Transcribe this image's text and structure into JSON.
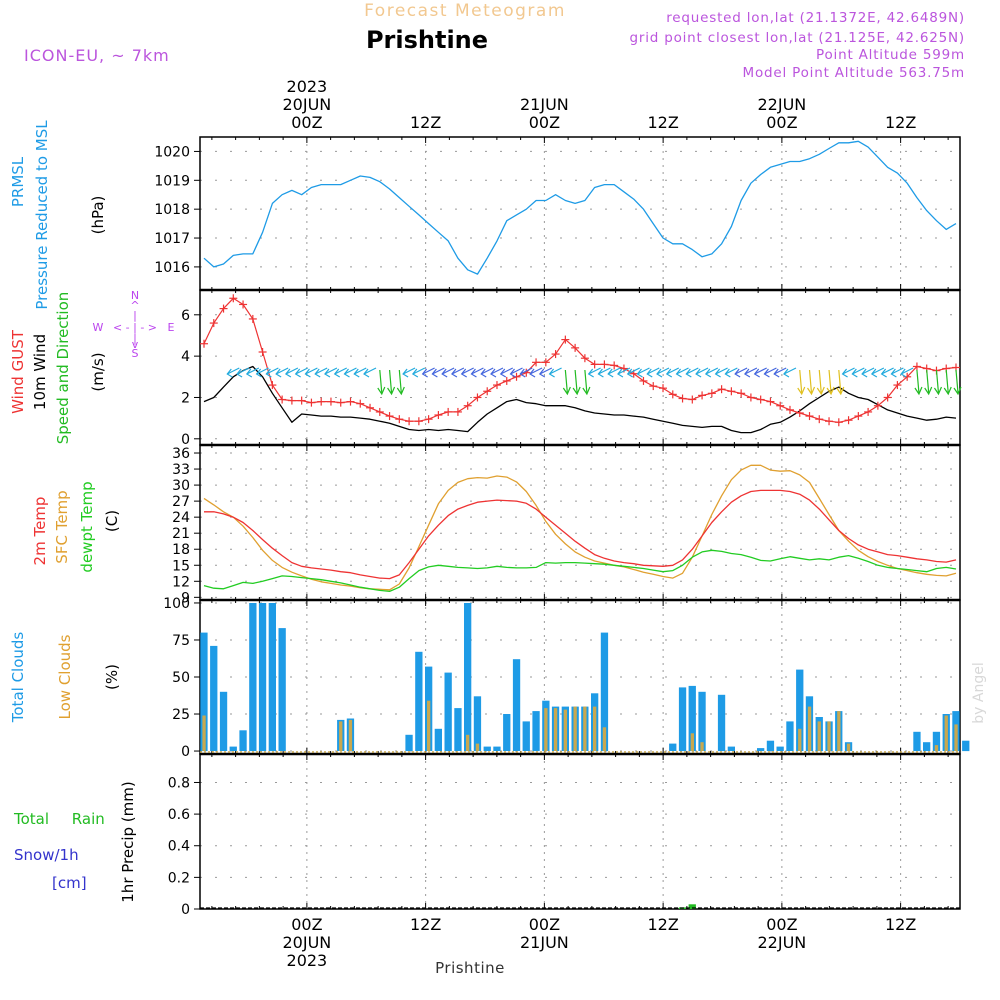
{
  "header": {
    "product": "Forecast Meteogram",
    "location": "Prishtine",
    "model": "ICON-EU, ~ 7km",
    "requested": "requested lon,lat (21.1372E, 42.6489N)",
    "gridpoint": "grid point closest lon,lat (21.125E, 42.625N)",
    "point_altitude": "Point Altitude 599m",
    "model_altitude": "Model Point Altitude 563.75m",
    "footer_location": "Prishtine",
    "credit": "by Angel"
  },
  "colors": {
    "pressure": "#1e9be6",
    "gust": "#ee3333",
    "wind10m": "#000000",
    "dirwind": "#22bb22",
    "t2m": "#ee3333",
    "tsfc": "#e0a030",
    "dewpt": "#22cc22",
    "total_clouds": "#1e9be6",
    "low_clouds": "#c8a850",
    "rain": "#22bb22",
    "snow": "#3333cc",
    "compass": "#bb44ee",
    "meta": "#bb55dd"
  },
  "time_axis": {
    "start_hour": 1,
    "end_hour": 65,
    "top_labels": [
      {
        "hour": 10,
        "lines": [
          "2023",
          "20JUN",
          "00Z"
        ]
      },
      {
        "hour": 20,
        "lines": [
          "12Z"
        ]
      },
      {
        "hour": 30,
        "lines": [
          "21JUN",
          "00Z"
        ]
      },
      {
        "hour": 40,
        "lines": [
          "12Z"
        ]
      },
      {
        "hour": 50,
        "lines": [
          "22JUN",
          "00Z"
        ]
      },
      {
        "hour": 60,
        "lines": [
          "12Z"
        ]
      }
    ],
    "bottom_labels": [
      {
        "hour": 10,
        "lines": [
          "00Z",
          "20JUN",
          "2023"
        ]
      },
      {
        "hour": 20,
        "lines": [
          "12Z"
        ]
      },
      {
        "hour": 30,
        "lines": [
          "00Z",
          "21JUN"
        ]
      },
      {
        "hour": 40,
        "lines": [
          "12Z"
        ]
      },
      {
        "hour": 50,
        "lines": [
          "00Z",
          "22JUN"
        ]
      },
      {
        "hour": 60,
        "lines": [
          "12Z"
        ]
      }
    ]
  },
  "panels": {
    "pressure": {
      "labels": [
        "PRMSL",
        "Pressure Reduced to MSL"
      ],
      "unit": "(hPa)"
    },
    "wind": {
      "labels": [
        "Wind GUST",
        "10m Wind",
        "Speed and Direction"
      ],
      "unit": "(m/s)",
      "compass": {
        "n": "N",
        "s": "S",
        "w": "W",
        "e": "E"
      }
    },
    "temp": {
      "labels": [
        "2m Temp",
        "SFC Temp",
        "dewpt Temp"
      ],
      "unit": "(C)"
    },
    "clouds": {
      "labels": [
        "Total Clouds",
        "Low Clouds"
      ],
      "unit": "(%)"
    },
    "precip": {
      "labels": [
        "Total Rain",
        "Snow/1h",
        "[cm]"
      ],
      "unit": "1hr Precip (mm)"
    }
  },
  "chart_data": [
    {
      "id": "pressure",
      "type": "line",
      "ylim": [
        1015.2,
        1020.5
      ],
      "yticks": [
        1016,
        1017,
        1018,
        1019,
        1020
      ],
      "series": [
        {
          "name": "PRMSL",
          "values": [
            1016.3,
            1016.0,
            1016.1,
            1016.4,
            1016.45,
            1016.45,
            1017.2,
            1018.2,
            1018.5,
            1018.65,
            1018.5,
            1018.75,
            1018.85,
            1018.85,
            1018.85,
            1019.0,
            1019.15,
            1019.1,
            1018.95,
            1018.7,
            1018.4,
            1018.1,
            1017.8,
            1017.5,
            1017.2,
            1016.9,
            1016.3,
            1015.9,
            1015.75,
            1016.3,
            1016.9,
            1017.6,
            1017.8,
            1018.0,
            1018.3,
            1018.3,
            1018.5,
            1018.3,
            1018.2,
            1018.3,
            1018.75,
            1018.85,
            1018.85,
            1018.6,
            1018.35,
            1018.0,
            1017.5,
            1017.0,
            1016.8,
            1016.8,
            1016.6,
            1016.35,
            1016.45,
            1016.8,
            1017.4,
            1018.3,
            1018.9,
            1019.2,
            1019.45,
            1019.55,
            1019.65,
            1019.65,
            1019.75,
            1019.9,
            1020.1,
            1020.3,
            1020.3,
            1020.35,
            1020.15,
            1019.8,
            1019.45,
            1019.25,
            1018.9,
            1018.4,
            1017.95,
            1017.6,
            1017.3,
            1017.5
          ]
        }
      ]
    },
    {
      "id": "wind",
      "type": "line",
      "ylim": [
        -0.3,
        7.2
      ],
      "yticks": [
        0,
        2,
        4,
        6
      ],
      "gust": [
        4.6,
        5.6,
        6.3,
        6.8,
        6.5,
        5.8,
        4.2,
        2.6,
        1.9,
        1.85,
        1.85,
        1.75,
        1.8,
        1.8,
        1.75,
        1.8,
        1.7,
        1.5,
        1.3,
        1.1,
        0.95,
        0.85,
        0.85,
        0.95,
        1.15,
        1.3,
        1.3,
        1.6,
        2.0,
        2.3,
        2.6,
        2.8,
        3.0,
        3.2,
        3.7,
        3.7,
        4.1,
        4.8,
        4.4,
        3.9,
        3.6,
        3.6,
        3.55,
        3.4,
        3.15,
        2.8,
        2.55,
        2.45,
        2.15,
        1.95,
        1.9,
        2.1,
        2.2,
        2.4,
        2.3,
        2.2,
        2.0,
        1.9,
        1.8,
        1.6,
        1.4,
        1.25,
        1.1,
        0.95,
        0.85,
        0.8,
        0.9,
        1.1,
        1.3,
        1.6,
        2.0,
        2.6,
        3.0,
        3.5,
        3.4,
        3.3,
        3.4,
        3.45
      ],
      "wind10m": [
        1.8,
        2.0,
        2.5,
        3.0,
        3.3,
        3.5,
        3.0,
        2.2,
        1.5,
        0.8,
        1.2,
        1.15,
        1.1,
        1.1,
        1.05,
        1.05,
        1.0,
        0.95,
        0.85,
        0.75,
        0.6,
        0.45,
        0.4,
        0.45,
        0.4,
        0.45,
        0.4,
        0.35,
        0.8,
        1.2,
        1.5,
        1.8,
        1.9,
        1.75,
        1.7,
        1.6,
        1.6,
        1.6,
        1.5,
        1.35,
        1.25,
        1.2,
        1.15,
        1.15,
        1.1,
        1.05,
        0.95,
        0.85,
        0.75,
        0.65,
        0.6,
        0.55,
        0.6,
        0.6,
        0.4,
        0.3,
        0.3,
        0.45,
        0.7,
        0.8,
        1.05,
        1.35,
        1.7,
        2.0,
        2.3,
        2.5,
        2.2,
        2.0,
        1.9,
        1.65,
        1.4,
        1.25,
        1.1,
        1.0,
        0.9,
        0.95,
        1.05,
        1.0
      ]
    },
    {
      "id": "temp",
      "type": "line",
      "ylim": [
        8.5,
        37.5
      ],
      "yticks": [
        9,
        12,
        15,
        18,
        21,
        24,
        27,
        30,
        33,
        36
      ],
      "series": [
        {
          "name": "2m Temp",
          "values": [
            25.0,
            25.0,
            24.6,
            24.0,
            23.0,
            21.5,
            19.8,
            18.2,
            16.8,
            15.5,
            14.8,
            14.5,
            14.3,
            14.1,
            13.8,
            13.6,
            13.2,
            12.9,
            12.6,
            12.5,
            13.2,
            15.5,
            18.0,
            20.5,
            22.5,
            24.3,
            25.5,
            26.2,
            26.8,
            27.0,
            27.2,
            27.1,
            27.0,
            26.6,
            25.5,
            24.0,
            22.5,
            21.0,
            19.5,
            18.2,
            17.0,
            16.3,
            15.8,
            15.5,
            15.3,
            15.0,
            14.9,
            14.8,
            15.0,
            16.0,
            18.0,
            20.5,
            23.0,
            25.0,
            26.8,
            28.0,
            28.8,
            29.0,
            29.0,
            29.0,
            28.8,
            28.3,
            27.2,
            25.5,
            23.5,
            21.5,
            20.0,
            18.8,
            18.0,
            17.5,
            17.0,
            16.8,
            16.5,
            16.2,
            16.0,
            15.7,
            15.6,
            16.0
          ]
        },
        {
          "name": "SFC Temp",
          "values": [
            27.5,
            26.3,
            25.0,
            24.0,
            22.3,
            20.2,
            17.8,
            15.9,
            14.6,
            13.7,
            13.0,
            12.4,
            11.9,
            11.6,
            11.3,
            11.1,
            10.8,
            10.6,
            10.5,
            10.4,
            11.5,
            14.5,
            18.5,
            22.5,
            26.5,
            29.0,
            30.5,
            31.2,
            31.4,
            31.3,
            31.7,
            31.5,
            30.6,
            28.8,
            26.2,
            23.2,
            20.8,
            19.0,
            17.5,
            16.5,
            15.8,
            15.4,
            15.0,
            14.7,
            14.2,
            13.7,
            13.3,
            12.9,
            12.6,
            13.5,
            16.5,
            20.5,
            24.5,
            28.0,
            31.0,
            32.8,
            33.7,
            33.7,
            32.8,
            32.6,
            32.7,
            31.9,
            30.5,
            27.5,
            24.5,
            21.5,
            19.5,
            17.8,
            16.6,
            15.7,
            15.0,
            14.4,
            14.0,
            13.6,
            13.3,
            13.1,
            13.0,
            13.5
          ]
        },
        {
          "name": "dewpt Temp",
          "values": [
            11.2,
            10.7,
            10.6,
            11.2,
            11.8,
            11.6,
            12.0,
            12.5,
            13.0,
            12.9,
            12.7,
            12.5,
            12.3,
            12.0,
            11.7,
            11.3,
            10.9,
            10.6,
            10.3,
            10.1,
            10.9,
            12.5,
            14.0,
            14.7,
            15.0,
            14.8,
            14.6,
            14.5,
            14.4,
            14.5,
            14.8,
            14.6,
            14.5,
            14.5,
            14.6,
            15.5,
            15.4,
            15.5,
            15.5,
            15.4,
            15.3,
            15.2,
            15.0,
            14.8,
            14.6,
            14.4,
            14.1,
            13.8,
            14.0,
            15.0,
            16.5,
            17.5,
            17.8,
            17.6,
            17.2,
            17.0,
            16.5,
            15.9,
            15.8,
            16.2,
            16.6,
            16.3,
            16.0,
            16.2,
            16.0,
            16.5,
            16.8,
            16.3,
            15.7,
            15.0,
            14.6,
            14.4,
            14.2,
            14.0,
            13.8,
            14.4,
            14.6,
            14.3
          ]
        }
      ]
    },
    {
      "id": "clouds",
      "type": "bar",
      "ylim": [
        -2,
        102
      ],
      "yticks": [
        0,
        25,
        50,
        75,
        100
      ],
      "series": [
        {
          "name": "Total Clouds",
          "values": [
            80,
            71,
            40,
            3,
            14,
            100,
            100,
            100,
            83,
            0,
            0,
            0,
            0,
            0,
            21,
            22,
            0,
            0,
            0,
            0,
            0,
            11,
            67,
            57,
            15,
            53,
            29,
            100,
            37,
            3,
            3,
            25,
            62,
            20,
            27,
            34,
            30,
            30,
            30,
            30,
            39,
            80,
            0,
            0,
            0,
            0,
            0,
            0,
            5,
            43,
            44,
            40,
            0,
            38,
            3,
            0,
            0,
            2,
            7,
            3,
            20,
            55,
            37,
            23,
            20,
            27,
            6,
            0,
            0,
            0,
            0,
            0,
            0,
            13,
            6,
            13,
            25,
            27,
            7,
            0
          ]
        },
        {
          "name": "Low Clouds",
          "values": [
            24,
            0,
            0,
            0,
            0,
            0,
            0,
            0,
            0,
            0,
            0,
            0,
            0,
            0,
            20,
            21,
            0,
            0,
            0,
            0,
            0,
            0,
            0,
            34,
            0,
            0,
            0,
            11,
            5,
            0,
            0,
            0,
            0,
            0,
            0,
            29,
            29,
            28,
            30,
            30,
            30,
            16,
            0,
            0,
            0,
            0,
            0,
            0,
            0,
            0,
            12,
            6,
            0,
            0,
            0,
            0,
            0,
            0,
            0,
            0,
            0,
            15,
            30,
            20,
            20,
            27,
            5,
            0,
            0,
            0,
            0,
            0,
            0,
            0,
            0,
            4,
            24,
            18,
            0,
            0
          ]
        }
      ]
    },
    {
      "id": "precip",
      "type": "bar",
      "ylim": [
        0,
        0.98
      ],
      "yticks": [
        0,
        0.2,
        0.4,
        0.6,
        0.8
      ],
      "series": [
        {
          "name": "Total Rain",
          "values": [
            0,
            0,
            0,
            0,
            0,
            0,
            0,
            0,
            0,
            0,
            0,
            0,
            0,
            0,
            0,
            0,
            0,
            0,
            0,
            0,
            0,
            0,
            0,
            0,
            0,
            0,
            0,
            0,
            0,
            0,
            0,
            0,
            0,
            0,
            0,
            0,
            0,
            0,
            0,
            0,
            0,
            0,
            0,
            0,
            0,
            0,
            0,
            0,
            0,
            0.01,
            0.03,
            0,
            0,
            0,
            0,
            0,
            0,
            0,
            0,
            0,
            0,
            0,
            0,
            0,
            0,
            0,
            0,
            0,
            0,
            0,
            0,
            0,
            0,
            0,
            0,
            0,
            0,
            0
          ]
        },
        {
          "name": "Snow/1h",
          "values": []
        }
      ]
    }
  ]
}
